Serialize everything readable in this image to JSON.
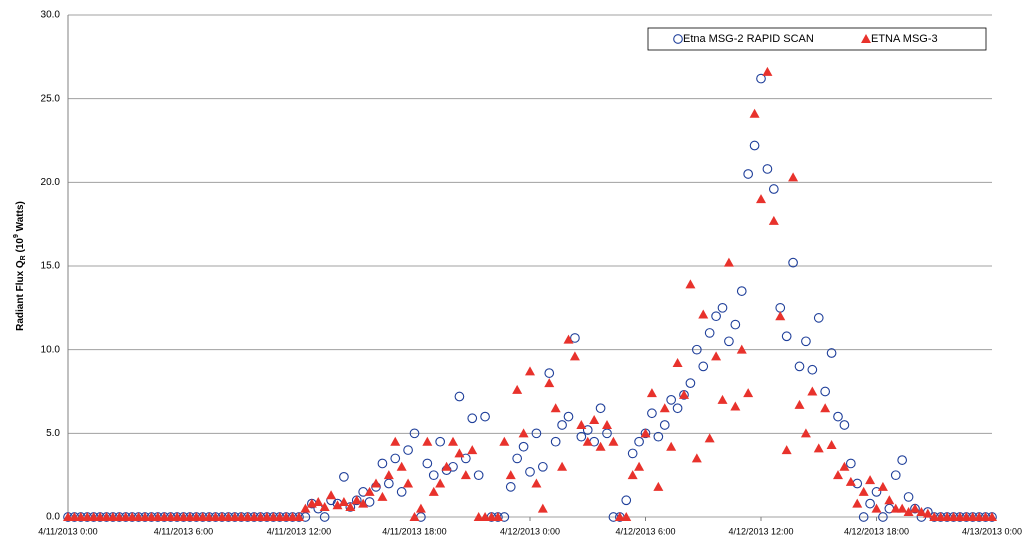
{
  "chart_data": {
    "type": "scatter",
    "ylabel": {
      "main": "Radiant Flux Q",
      "sub": "R",
      "mid": " (10",
      "sup": "9",
      "end": " Watts)"
    },
    "legend": "upper right",
    "grid": true,
    "xlim": [
      "4/11/2013 0:00",
      "4/13/2013 0:00"
    ],
    "xticks": [
      "4/11/2013 0:00",
      "4/11/2013 6:00",
      "4/11/2013 12:00",
      "4/11/2013 18:00",
      "4/12/2013 0:00",
      "4/12/2013 6:00",
      "4/12/2013 12:00",
      "4/12/2013 18:00",
      "4/13/2013 0:00"
    ],
    "ylim": [
      0,
      30
    ],
    "yticks": [
      {
        "value": 0,
        "label": "0.0"
      },
      {
        "value": 5,
        "label": "5.0"
      },
      {
        "value": 10,
        "label": "10.0"
      },
      {
        "value": 15,
        "label": "15.0"
      },
      {
        "value": 20,
        "label": "20.0"
      },
      {
        "value": 25,
        "label": "25.0"
      },
      {
        "value": 30,
        "label": "30.0"
      }
    ],
    "x": [
      "4/11/2013 0:00",
      "4/11/2013 0:20",
      "4/11/2013 0:40",
      "4/11/2013 1:00",
      "4/11/2013 1:20",
      "4/11/2013 1:40",
      "4/11/2013 2:00",
      "4/11/2013 2:20",
      "4/11/2013 2:40",
      "4/11/2013 3:00",
      "4/11/2013 3:20",
      "4/11/2013 3:40",
      "4/11/2013 4:00",
      "4/11/2013 4:20",
      "4/11/2013 4:40",
      "4/11/2013 5:00",
      "4/11/2013 5:20",
      "4/11/2013 5:40",
      "4/11/2013 6:00",
      "4/11/2013 6:20",
      "4/11/2013 6:40",
      "4/11/2013 7:00",
      "4/11/2013 7:20",
      "4/11/2013 7:40",
      "4/11/2013 8:00",
      "4/11/2013 8:20",
      "4/11/2013 8:40",
      "4/11/2013 9:00",
      "4/11/2013 9:20",
      "4/11/2013 9:40",
      "4/11/2013 10:00",
      "4/11/2013 10:20",
      "4/11/2013 10:40",
      "4/11/2013 11:00",
      "4/11/2013 11:20",
      "4/11/2013 11:40",
      "4/11/2013 12:00",
      "4/11/2013 12:20",
      "4/11/2013 12:40",
      "4/11/2013 13:00",
      "4/11/2013 13:20",
      "4/11/2013 13:40",
      "4/11/2013 14:00",
      "4/11/2013 14:20",
      "4/11/2013 14:40",
      "4/11/2013 15:00",
      "4/11/2013 15:20",
      "4/11/2013 15:40",
      "4/11/2013 16:00",
      "4/11/2013 16:20",
      "4/11/2013 16:40",
      "4/11/2013 17:00",
      "4/11/2013 17:20",
      "4/11/2013 17:40",
      "4/11/2013 18:00",
      "4/11/2013 18:20",
      "4/11/2013 18:40",
      "4/11/2013 19:00",
      "4/11/2013 19:20",
      "4/11/2013 19:40",
      "4/11/2013 20:00",
      "4/11/2013 20:20",
      "4/11/2013 20:40",
      "4/11/2013 21:00",
      "4/11/2013 21:20",
      "4/11/2013 21:40",
      "4/11/2013 22:00",
      "4/11/2013 22:20",
      "4/11/2013 22:40",
      "4/11/2013 23:00",
      "4/11/2013 23:20",
      "4/11/2013 23:40",
      "4/12/2013 0:00",
      "4/12/2013 0:20",
      "4/12/2013 0:40",
      "4/12/2013 1:00",
      "4/12/2013 1:20",
      "4/12/2013 1:40",
      "4/12/2013 2:00",
      "4/12/2013 2:20",
      "4/12/2013 2:40",
      "4/12/2013 3:00",
      "4/12/2013 3:20",
      "4/12/2013 3:40",
      "4/12/2013 4:00",
      "4/12/2013 4:20",
      "4/12/2013 4:40",
      "4/12/2013 5:00",
      "4/12/2013 5:20",
      "4/12/2013 5:40",
      "4/12/2013 6:00",
      "4/12/2013 6:20",
      "4/12/2013 6:40",
      "4/12/2013 7:00",
      "4/12/2013 7:20",
      "4/12/2013 7:40",
      "4/12/2013 8:00",
      "4/12/2013 8:20",
      "4/12/2013 8:40",
      "4/12/2013 9:00",
      "4/12/2013 9:20",
      "4/12/2013 9:40",
      "4/12/2013 10:00",
      "4/12/2013 10:20",
      "4/12/2013 10:40",
      "4/12/2013 11:00",
      "4/12/2013 11:20",
      "4/12/2013 11:40",
      "4/12/2013 12:00",
      "4/12/2013 12:20",
      "4/12/2013 12:40",
      "4/12/2013 13:00",
      "4/12/2013 13:20",
      "4/12/2013 13:40",
      "4/12/2013 14:00",
      "4/12/2013 14:20",
      "4/12/2013 14:40",
      "4/12/2013 15:00",
      "4/12/2013 15:20",
      "4/12/2013 15:40",
      "4/12/2013 16:00",
      "4/12/2013 16:20",
      "4/12/2013 16:40",
      "4/12/2013 17:00",
      "4/12/2013 17:20",
      "4/12/2013 17:40",
      "4/12/2013 18:00",
      "4/12/2013 18:20",
      "4/12/2013 18:40",
      "4/12/2013 19:00",
      "4/12/2013 19:20",
      "4/12/2013 19:40",
      "4/12/2013 20:00",
      "4/12/2013 20:20",
      "4/12/2013 20:40",
      "4/12/2013 21:00",
      "4/12/2013 21:20",
      "4/12/2013 21:40",
      "4/12/2013 22:00",
      "4/12/2013 22:20",
      "4/12/2013 22:40",
      "4/12/2013 23:00",
      "4/12/2013 23:20",
      "4/12/2013 23:40",
      "4/13/2013 0:00"
    ],
    "series": [
      {
        "name": "Etna MSG-2 RAPID SCAN",
        "color": "#1f3f9a",
        "marker": "circle",
        "values": [
          0,
          0,
          0,
          0,
          0,
          0,
          0,
          0,
          0,
          0,
          0,
          0,
          0,
          0,
          0,
          0,
          0,
          0,
          0,
          0,
          0,
          0,
          0,
          0,
          0,
          0,
          0,
          0,
          0,
          0,
          0,
          0,
          0,
          0,
          0,
          0,
          0,
          0,
          0.8,
          0.5,
          0,
          1.0,
          0.8,
          2.4,
          0.6,
          1.0,
          1.5,
          0.9,
          1.8,
          3.2,
          2.0,
          3.5,
          1.5,
          4.0,
          5.0,
          0,
          3.2,
          2.5,
          4.5,
          2.8,
          3.0,
          7.2,
          3.5,
          5.9,
          2.5,
          6.0,
          0,
          0,
          0,
          1.8,
          3.5,
          4.2,
          2.7,
          5.0,
          3.0,
          8.6,
          4.5,
          5.5,
          6.0,
          10.7,
          4.8,
          5.2,
          4.5,
          6.5,
          5.0,
          0,
          0,
          1.0,
          3.8,
          4.5,
          5.0,
          6.2,
          4.8,
          5.5,
          7.0,
          6.5,
          7.3,
          8.0,
          10.0,
          9.0,
          11.0,
          12.0,
          12.5,
          10.5,
          11.5,
          13.5,
          20.5,
          22.2,
          26.2,
          20.8,
          19.6,
          12.5,
          10.8,
          15.2,
          9.0,
          10.5,
          8.8,
          11.9,
          7.5,
          9.8,
          6.0,
          5.5,
          3.2,
          2.0,
          0,
          0.8,
          1.5,
          0,
          0.5,
          2.5,
          3.4,
          1.2,
          0.5,
          0,
          0.3,
          0,
          0,
          0,
          0,
          0,
          0,
          0,
          0,
          0,
          0
        ]
      },
      {
        "name": "ETNA MSG-3",
        "color": "#e8322c",
        "marker": "triangle",
        "values": [
          0,
          0,
          0,
          0,
          0,
          0,
          0,
          0,
          0,
          0,
          0,
          0,
          0,
          0,
          0,
          0,
          0,
          0,
          0,
          0,
          0,
          0,
          0,
          0,
          0,
          0,
          0,
          0,
          0,
          0,
          0,
          0,
          0,
          0,
          0,
          0,
          0,
          0.5,
          0.8,
          0.9,
          0.6,
          1.3,
          0.7,
          0.9,
          0.6,
          1.0,
          0.8,
          1.5,
          2.0,
          1.2,
          2.5,
          4.5,
          3.0,
          2.0,
          0,
          0.5,
          4.5,
          1.5,
          2.0,
          3.0,
          4.5,
          3.8,
          2.5,
          4.0,
          0,
          0,
          0,
          0,
          4.5,
          2.5,
          7.6,
          5.0,
          8.7,
          2.0,
          0.5,
          8.0,
          6.5,
          3.0,
          10.6,
          9.6,
          5.5,
          4.5,
          5.8,
          4.2,
          5.5,
          4.5,
          0,
          0,
          2.5,
          3.0,
          5.0,
          7.4,
          1.8,
          6.5,
          4.2,
          9.2,
          7.3,
          13.9,
          3.5,
          12.1,
          4.7,
          9.6,
          7.0,
          15.2,
          6.6,
          10.0,
          7.4,
          24.1,
          19.0,
          26.6,
          17.7,
          12.0,
          4.0,
          20.3,
          6.7,
          5.0,
          7.5,
          4.1,
          6.5,
          4.3,
          2.5,
          3.0,
          2.1,
          0.8,
          1.5,
          2.2,
          0.5,
          1.8,
          1.0,
          0.5,
          0.5,
          0.3,
          0.5,
          0.3,
          0.2,
          0,
          0,
          0,
          0,
          0,
          0,
          0,
          0,
          0,
          0
        ]
      }
    ]
  }
}
